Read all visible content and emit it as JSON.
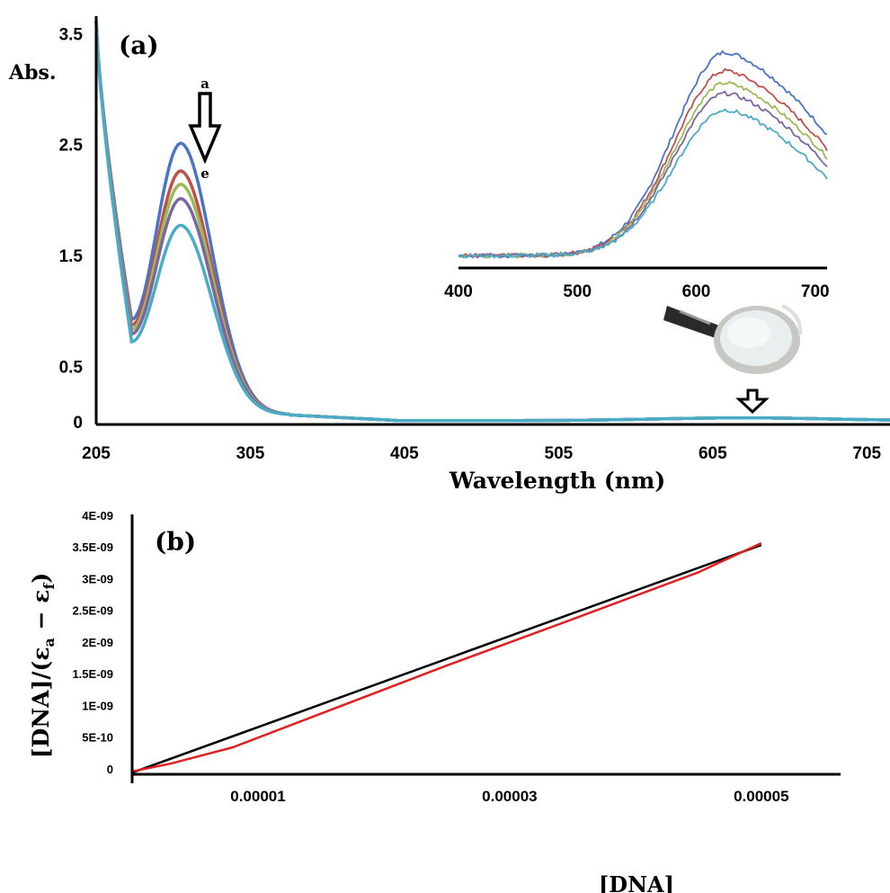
{
  "chart_data": [
    {
      "panel": "(a)",
      "type": "line",
      "ylabel": "Abs.",
      "xlabel": "Wavelength (nm)",
      "x_ticks": [
        "205",
        "305",
        "405",
        "505",
        "605",
        "705"
      ],
      "y_ticks": [
        "0",
        "0.5",
        "1.5",
        "2.5",
        "3.5"
      ],
      "xlim": [
        205,
        720
      ],
      "ylim": [
        0,
        3.6
      ],
      "trend_arrow": {
        "start_label": "a",
        "end_label": "e"
      },
      "series": [
        {
          "color": "#4a74c4",
          "peak_x": 260,
          "peak_y": 2.52,
          "min_x": 228,
          "min_y": 0.93
        },
        {
          "color": "#c0504d",
          "peak_x": 260,
          "peak_y": 2.27,
          "min_x": 228,
          "min_y": 0.88
        },
        {
          "color": "#9bbb59",
          "peak_x": 260,
          "peak_y": 2.15,
          "min_x": 228,
          "min_y": 0.84
        },
        {
          "color": "#8064a2",
          "peak_x": 260,
          "peak_y": 2.02,
          "min_x": 228,
          "min_y": 0.8
        },
        {
          "color": "#4bacc6",
          "peak_x": 260,
          "peak_y": 1.78,
          "min_x": 228,
          "min_y": 0.73
        }
      ],
      "inset": {
        "type": "line",
        "x_ticks": [
          "400",
          "500",
          "600",
          "700"
        ],
        "xlim": [
          400,
          710
        ],
        "peak_x": 625,
        "series": [
          {
            "color": "#4a74c4",
            "peak": 1.0,
            "end": 0.6
          },
          {
            "color": "#c0504d",
            "peak": 0.91,
            "end": 0.53
          },
          {
            "color": "#9bbb59",
            "peak": 0.85,
            "end": 0.49
          },
          {
            "color": "#8064a2",
            "peak": 0.8,
            "end": 0.45
          },
          {
            "color": "#4bacc6",
            "peak": 0.72,
            "end": 0.39
          }
        ]
      }
    },
    {
      "panel": "(b)",
      "type": "line",
      "ylabel": "[DNA]/(εa − εf)",
      "xlabel": "[DNA]",
      "x_ticks": [
        {
          "label": "0.00001",
          "value": 1e-05
        },
        {
          "label": "0.00003",
          "value": 3e-05
        },
        {
          "label": "0.00005",
          "value": 5e-05
        }
      ],
      "y_ticks": [
        {
          "label": "0",
          "value": 0
        },
        {
          "label": "5E-10",
          "value": 5e-10
        },
        {
          "label": "1E-09",
          "value": 1e-09
        },
        {
          "label": "1.5E-09",
          "value": 1.5e-09
        },
        {
          "label": "2E-09",
          "value": 2e-09
        },
        {
          "label": "2.5E-09",
          "value": 2.5e-09
        },
        {
          "label": "3E-09",
          "value": 3e-09
        },
        {
          "label": "3.5E-09",
          "value": 3.5e-09
        },
        {
          "label": "4E-09",
          "value": 4e-09
        }
      ],
      "xlim": [
        0,
        5.63e-05
      ],
      "ylim": [
        -1e-10,
        4e-09
      ],
      "series": [
        {
          "color": "#000000",
          "x": [
            0,
            5e-05
          ],
          "y": [
            -6e-11,
            3.53e-09
          ]
        },
        {
          "color": "#e02020",
          "x": [
            0,
            3e-06,
            8e-06,
            1.5e-05,
            2.5e-05,
            3.5e-05,
            4.5e-05,
            5e-05
          ],
          "y": [
            -4e-11,
            8e-11,
            3.4e-10,
            8.7e-10,
            1.63e-09,
            2.36e-09,
            3.1e-09,
            3.56e-09
          ]
        }
      ]
    }
  ]
}
